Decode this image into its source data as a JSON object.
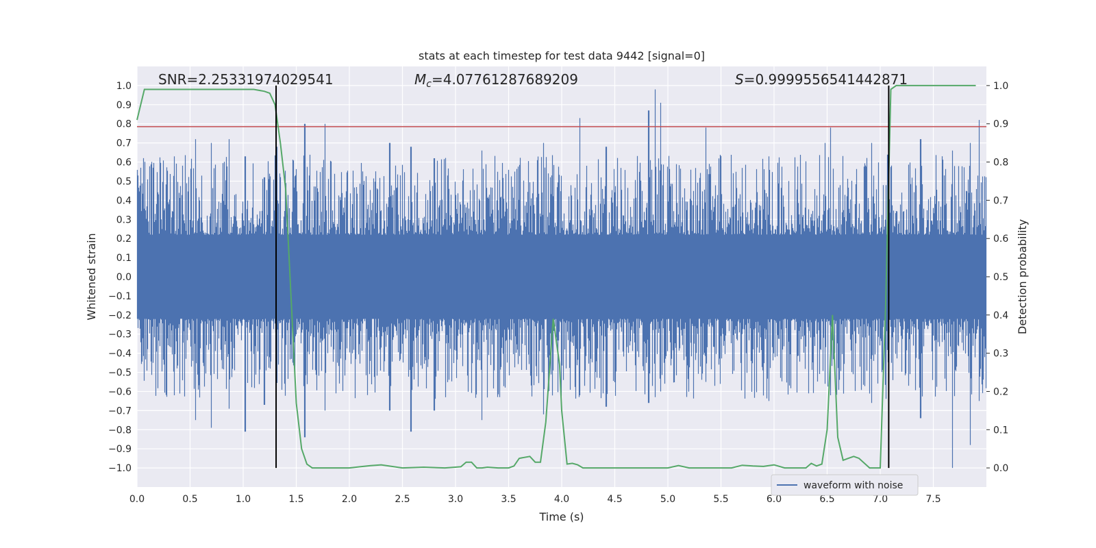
{
  "chart_data": {
    "type": "line",
    "title": "stats at each timestep for test data 9442 [signal=0]",
    "xlabel": "Time (s)",
    "ylabel_left": "Whitened strain",
    "ylabel_right": "Detection probability",
    "xlim": [
      0.0,
      8.0
    ],
    "ylim_left": [
      -1.1,
      1.1
    ],
    "ylim_right": [
      -0.05,
      1.05
    ],
    "x_ticks": [
      "0.0",
      "0.5",
      "1.0",
      "1.5",
      "2.0",
      "2.5",
      "3.0",
      "3.5",
      "4.0",
      "4.5",
      "5.0",
      "5.5",
      "6.0",
      "6.5",
      "7.0",
      "7.5"
    ],
    "y_left_ticks": [
      "1.0",
      "0.9",
      "0.8",
      "0.7",
      "0.6",
      "0.5",
      "0.4",
      "0.3",
      "0.2",
      "0.1",
      "0.0",
      "−0.1",
      "−0.2",
      "−0.3",
      "−0.4",
      "−0.5",
      "−0.6",
      "−0.7",
      "−0.8",
      "−0.9",
      "−1.0"
    ],
    "y_right_ticks": [
      "1.0",
      "0.9",
      "0.8",
      "0.7",
      "0.6",
      "0.5",
      "0.4",
      "0.3",
      "0.2",
      "0.1",
      "0.0"
    ],
    "grid": true,
    "legend_position": "lower-right",
    "annotations": {
      "snr": "SNR=2.25331974029541",
      "mc_symbol": "M",
      "mc_sub": "c",
      "mc_value": "=4.07761287689209",
      "s_symbol": "S",
      "s_value": "=0.9999556541442871"
    },
    "threshold_left": 0.785,
    "vertical_markers_x": [
      1.31,
      7.08
    ],
    "series": [
      {
        "name": "waveform with noise",
        "color": "#4c72b0",
        "description_peaks": [
          [
            0.15,
            0.57,
            -0.45
          ],
          [
            0.35,
            0.63,
            -0.62
          ],
          [
            0.55,
            0.72,
            -0.75
          ],
          [
            0.7,
            0.7,
            -0.79
          ],
          [
            0.87,
            0.72,
            -0.69
          ],
          [
            1.02,
            0.63,
            -0.81
          ],
          [
            1.2,
            0.52,
            -0.67
          ],
          [
            1.32,
            0.68,
            -0.41
          ],
          [
            1.58,
            0.8,
            -0.84
          ],
          [
            1.77,
            0.8,
            -0.7
          ],
          [
            2.38,
            0.7,
            -0.7
          ],
          [
            2.58,
            0.68,
            -0.81
          ],
          [
            2.8,
            0.62,
            -0.7
          ],
          [
            3.25,
            0.66,
            -0.75
          ],
          [
            3.83,
            0.7,
            -0.72
          ],
          [
            4.17,
            0.83,
            -0.62
          ],
          [
            4.42,
            0.68,
            -0.68
          ],
          [
            4.82,
            0.87,
            -0.66
          ],
          [
            4.88,
            0.98,
            -0.63
          ],
          [
            4.93,
            0.91,
            -0.6
          ],
          [
            5.36,
            0.78,
            -0.55
          ],
          [
            5.95,
            0.63,
            -0.65
          ],
          [
            6.48,
            0.7,
            -0.56
          ],
          [
            6.53,
            0.78,
            -0.62
          ],
          [
            6.92,
            0.7,
            -0.66
          ],
          [
            7.38,
            0.72,
            -0.74
          ],
          [
            7.68,
            0.66,
            -1.0
          ],
          [
            7.85,
            0.7,
            -0.88
          ],
          [
            7.93,
            0.82,
            -0.65
          ]
        ]
      },
      {
        "name": "",
        "color": "#55a868",
        "x": [
          0.0,
          0.07,
          0.15,
          0.3,
          0.5,
          0.7,
          0.9,
          1.0,
          1.1,
          1.2,
          1.25,
          1.3,
          1.35,
          1.4,
          1.45,
          1.5,
          1.55,
          1.6,
          1.65,
          1.7,
          1.8,
          2.0,
          2.1,
          2.2,
          2.3,
          2.5,
          2.7,
          2.9,
          3.05,
          3.1,
          3.15,
          3.2,
          3.25,
          3.3,
          3.4,
          3.5,
          3.55,
          3.6,
          3.7,
          3.75,
          3.8,
          3.85,
          3.92,
          3.98,
          4.0,
          4.05,
          4.1,
          4.15,
          4.2,
          4.3,
          4.4,
          4.6,
          4.8,
          5.0,
          5.1,
          5.2,
          5.4,
          5.6,
          5.7,
          5.8,
          5.9,
          6.0,
          6.1,
          6.2,
          6.3,
          6.35,
          6.4,
          6.45,
          6.5,
          6.55,
          6.6,
          6.65,
          6.7,
          6.75,
          6.8,
          6.9,
          6.95,
          7.0,
          7.05,
          7.1,
          7.15,
          7.2,
          7.5,
          7.9
        ],
        "y": [
          0.91,
          0.99,
          0.99,
          0.99,
          0.99,
          0.99,
          0.99,
          0.99,
          0.99,
          0.985,
          0.98,
          0.95,
          0.85,
          0.73,
          0.45,
          0.17,
          0.05,
          0.01,
          0.0,
          0.0,
          0.0,
          0.0,
          0.003,
          0.006,
          0.008,
          0.0,
          0.002,
          0.0,
          0.003,
          0.015,
          0.015,
          0.0,
          0.0,
          0.002,
          0.0,
          0.0,
          0.005,
          0.025,
          0.03,
          0.015,
          0.015,
          0.12,
          0.39,
          0.27,
          0.15,
          0.01,
          0.012,
          0.008,
          0.0,
          0.0,
          0.0,
          0.0,
          0.0,
          0.0,
          0.006,
          0.0,
          0.0,
          0.0,
          0.007,
          0.005,
          0.004,
          0.008,
          0.0,
          0.0,
          0.0,
          0.012,
          0.005,
          0.01,
          0.1,
          0.4,
          0.08,
          0.02,
          0.025,
          0.03,
          0.025,
          0.0,
          0.0,
          0.0,
          0.42,
          0.99,
          1.0,
          1.0,
          1.0,
          1.0
        ]
      }
    ],
    "threshold_color": "#c44e52",
    "marker_color": "#000000"
  }
}
